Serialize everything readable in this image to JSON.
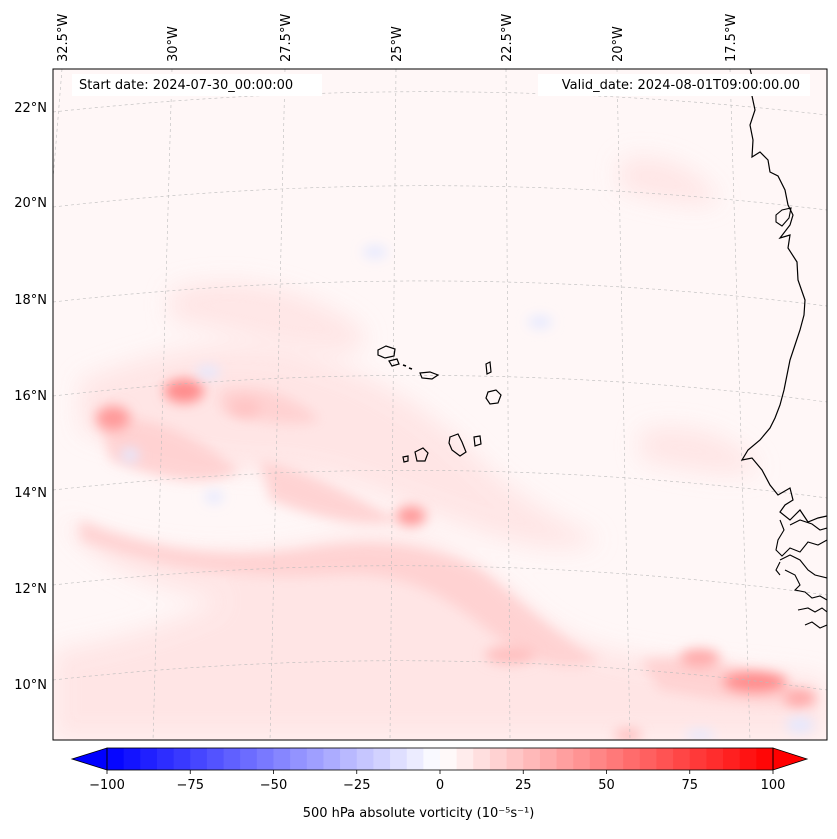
{
  "header": {
    "start_date": "Start date: 2024-07-30_00:00:00",
    "valid_date": "Valid_date: 2024-08-01T09:00:00.00"
  },
  "map": {
    "projection": "conformal (curved graticule)",
    "lon_ticks": [
      "32.5°W",
      "30°W",
      "27.5°W",
      "25°W",
      "22.5°W",
      "20°W",
      "17.5°W"
    ],
    "lat_ticks": [
      "22°N",
      "20°N",
      "18°N",
      "16°N",
      "14°N",
      "12°N",
      "10°N"
    ],
    "features": [
      "West African coastline",
      "Cape Verde islands"
    ],
    "field_description": "weak positive vorticity background with band of positive maxima along ~10-14°N"
  },
  "colorbar": {
    "label": "500 hPa absolute vorticity (10⁻⁵s⁻¹)",
    "ticks": [
      "−100",
      "−75",
      "−50",
      "−25",
      "0",
      "25",
      "50",
      "75",
      "100"
    ],
    "min": -100,
    "max": 100,
    "cmap": "bwr",
    "extend": "both"
  },
  "colors": {
    "negative": "#0000ff",
    "positive": "#ff0000",
    "neutral": "#ffffff"
  }
}
